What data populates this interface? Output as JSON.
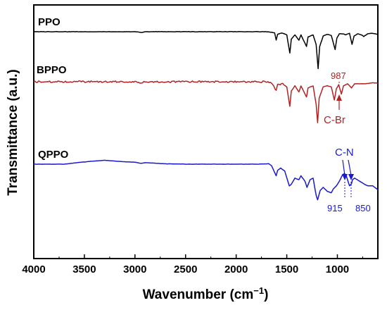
{
  "chart_data": {
    "type": "line",
    "xlabel_main": "Wavenumber (cm",
    "xlabel_sup": "−1",
    "xlabel_close": ")",
    "ylabel": "Transmittance (a.u.)",
    "xlim": [
      4000,
      600
    ],
    "x_reversed": true,
    "x_ticks": [
      4000,
      3500,
      3000,
      2500,
      2000,
      1500,
      1000
    ],
    "y_ticks": [],
    "grid": false,
    "series": [
      {
        "name": "PPO",
        "color": "#000000",
        "points": [
          [
            4000,
            0.0
          ],
          [
            3000,
            0.0
          ],
          [
            2940,
            0.8
          ],
          [
            2900,
            0.0
          ],
          [
            1700,
            0.0
          ],
          [
            1660,
            0.6
          ],
          [
            1620,
            1.0
          ],
          [
            1605,
            8.0
          ],
          [
            1590,
            2.5
          ],
          [
            1550,
            1.2
          ],
          [
            1500,
            3.0
          ],
          [
            1470,
            20.0
          ],
          [
            1455,
            7.0
          ],
          [
            1420,
            3.0
          ],
          [
            1380,
            8.0
          ],
          [
            1360,
            3.0
          ],
          [
            1305,
            14.0
          ],
          [
            1290,
            5.0
          ],
          [
            1240,
            3.0
          ],
          [
            1210,
            12.0
          ],
          [
            1190,
            35.0
          ],
          [
            1175,
            14.0
          ],
          [
            1140,
            4.0
          ],
          [
            1100,
            2.5
          ],
          [
            1060,
            3.5
          ],
          [
            1022,
            17.0
          ],
          [
            1005,
            6.0
          ],
          [
            980,
            2.0
          ],
          [
            940,
            2.0
          ],
          [
            920,
            3.0
          ],
          [
            880,
            1.5
          ],
          [
            855,
            12.0
          ],
          [
            835,
            4.0
          ],
          [
            800,
            2.0
          ],
          [
            760,
            3.0
          ],
          [
            740,
            4.5
          ],
          [
            700,
            2.0
          ],
          [
            650,
            1.5
          ],
          [
            600,
            2.5
          ]
        ]
      },
      {
        "name": "BPPO",
        "color": "#b22222",
        "points": [
          [
            4000,
            0.0
          ],
          [
            3000,
            0.0
          ],
          [
            2940,
            1.5
          ],
          [
            2900,
            0.0
          ],
          [
            1700,
            0.0
          ],
          [
            1660,
            0.8
          ],
          [
            1605,
            8.0
          ],
          [
            1590,
            3.0
          ],
          [
            1540,
            2.0
          ],
          [
            1500,
            5.0
          ],
          [
            1470,
            24.0
          ],
          [
            1455,
            9.0
          ],
          [
            1420,
            4.0
          ],
          [
            1380,
            10.0
          ],
          [
            1360,
            4.0
          ],
          [
            1305,
            15.0
          ],
          [
            1290,
            6.0
          ],
          [
            1240,
            4.0
          ],
          [
            1210,
            22.0
          ],
          [
            1195,
            40.0
          ],
          [
            1180,
            16.0
          ],
          [
            1140,
            5.0
          ],
          [
            1100,
            4.0
          ],
          [
            1060,
            5.0
          ],
          [
            1030,
            18.0
          ],
          [
            1010,
            7.0
          ],
          [
            987,
            3.0
          ],
          [
            960,
            12.0
          ],
          [
            940,
            4.0
          ],
          [
            900,
            2.0
          ],
          [
            860,
            6.0
          ],
          [
            830,
            2.0
          ],
          [
            780,
            2.0
          ],
          [
            720,
            2.0
          ],
          [
            650,
            1.0
          ],
          [
            600,
            1.5
          ]
        ]
      },
      {
        "name": "QPPO",
        "color": "#1a1acc",
        "points": [
          [
            4000,
            0.0
          ],
          [
            3700,
            0.0
          ],
          [
            3600,
            -1.5
          ],
          [
            3450,
            -3.5
          ],
          [
            3300,
            -5.0
          ],
          [
            3150,
            -3.5
          ],
          [
            3000,
            -2.5
          ],
          [
            2940,
            -1.0
          ],
          [
            2900,
            -2.0
          ],
          [
            2700,
            -0.5
          ],
          [
            2500,
            0.0
          ],
          [
            1800,
            0.0
          ],
          [
            1680,
            -0.5
          ],
          [
            1650,
            2.0
          ],
          [
            1605,
            15.0
          ],
          [
            1590,
            8.0
          ],
          [
            1560,
            5.0
          ],
          [
            1520,
            9.0
          ],
          [
            1475,
            28.0
          ],
          [
            1455,
            26.0
          ],
          [
            1420,
            18.0
          ],
          [
            1380,
            20.0
          ],
          [
            1360,
            15.0
          ],
          [
            1320,
            22.0
          ],
          [
            1300,
            30.0
          ],
          [
            1270,
            20.0
          ],
          [
            1240,
            18.0
          ],
          [
            1210,
            40.0
          ],
          [
            1195,
            46.0
          ],
          [
            1170,
            34.0
          ],
          [
            1140,
            30.0
          ],
          [
            1100,
            35.0
          ],
          [
            1060,
            37.0
          ],
          [
            1040,
            32.0
          ],
          [
            1010,
            28.0
          ],
          [
            980,
            22.0
          ],
          [
            950,
            14.0
          ],
          [
            930,
            12.0
          ],
          [
            915,
            14.0
          ],
          [
            900,
            20.0
          ],
          [
            880,
            28.0
          ],
          [
            860,
            25.0
          ],
          [
            850,
            20.0
          ],
          [
            830,
            18.0
          ],
          [
            780,
            22.0
          ],
          [
            730,
            26.0
          ],
          [
            700,
            28.0
          ],
          [
            650,
            28.0
          ],
          [
            600,
            33.0
          ]
        ]
      }
    ],
    "labels": {
      "ppo": "PPO",
      "bppo": "BPPO",
      "qppo": "QPPO"
    },
    "annotations": {
      "bppo_peak": "987",
      "bppo_group": "C-Br",
      "qppo_group": "C-N",
      "qppo_peak1": "915",
      "qppo_peak2": "850"
    }
  }
}
